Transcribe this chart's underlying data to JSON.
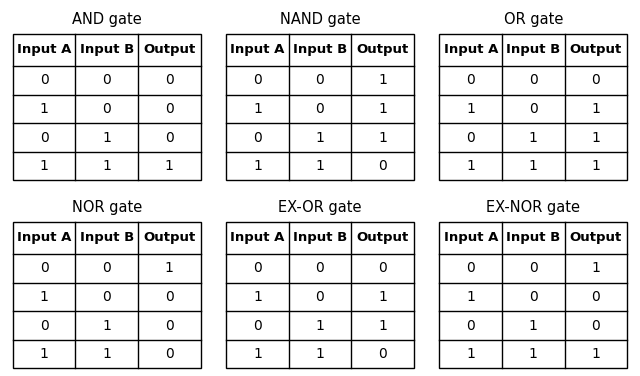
{
  "gates": [
    {
      "title": "AND gate",
      "headers": [
        "Input A",
        "Input B",
        "Output"
      ],
      "rows": [
        [
          "0",
          "0",
          "0"
        ],
        [
          "1",
          "0",
          "0"
        ],
        [
          "0",
          "1",
          "0"
        ],
        [
          "1",
          "1",
          "1"
        ]
      ]
    },
    {
      "title": "NAND gate",
      "headers": [
        "Input A",
        "Input B",
        "Output"
      ],
      "rows": [
        [
          "0",
          "0",
          "1"
        ],
        [
          "1",
          "0",
          "1"
        ],
        [
          "0",
          "1",
          "1"
        ],
        [
          "1",
          "1",
          "0"
        ]
      ]
    },
    {
      "title": "OR gate",
      "headers": [
        "Input A",
        "Input B",
        "Output"
      ],
      "rows": [
        [
          "0",
          "0",
          "0"
        ],
        [
          "1",
          "0",
          "1"
        ],
        [
          "0",
          "1",
          "1"
        ],
        [
          "1",
          "1",
          "1"
        ]
      ]
    },
    {
      "title": "NOR gate",
      "headers": [
        "Input A",
        "Input B",
        "Output"
      ],
      "rows": [
        [
          "0",
          "0",
          "1"
        ],
        [
          "1",
          "0",
          "0"
        ],
        [
          "0",
          "1",
          "0"
        ],
        [
          "1",
          "1",
          "0"
        ]
      ]
    },
    {
      "title": "EX-OR gate",
      "headers": [
        "Input A",
        "Input B",
        "Output"
      ],
      "rows": [
        [
          "0",
          "0",
          "0"
        ],
        [
          "1",
          "0",
          "1"
        ],
        [
          "0",
          "1",
          "1"
        ],
        [
          "1",
          "1",
          "0"
        ]
      ]
    },
    {
      "title": "EX-NOR gate",
      "headers": [
        "Input A",
        "Input B",
        "Output"
      ],
      "rows": [
        [
          "0",
          "0",
          "1"
        ],
        [
          "1",
          "0",
          "0"
        ],
        [
          "0",
          "1",
          "0"
        ],
        [
          "1",
          "1",
          "1"
        ]
      ]
    }
  ],
  "background_color": "#ffffff",
  "title_fontsize": 10.5,
  "header_fontsize": 9.5,
  "data_fontsize": 10,
  "lw": 1.0
}
